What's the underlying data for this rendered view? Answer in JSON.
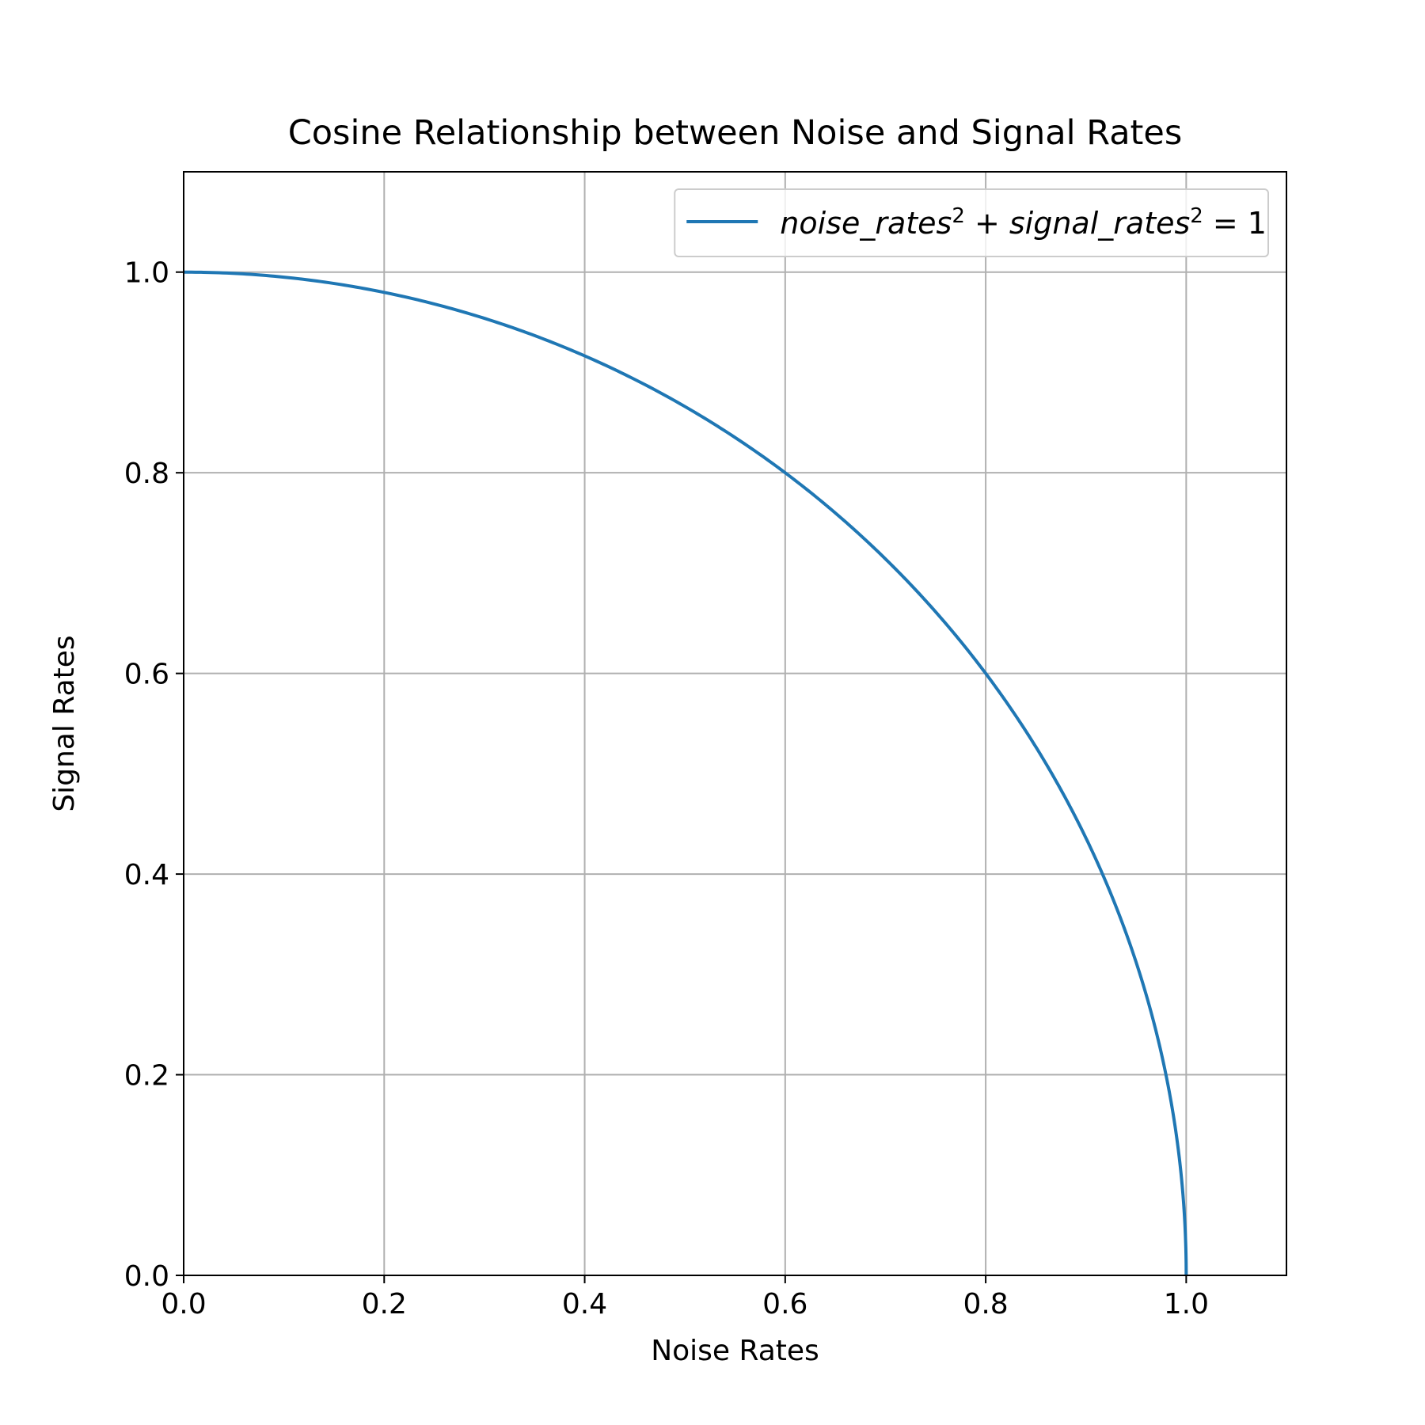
{
  "chart_data": {
    "type": "line",
    "title": "Cosine Relationship between Noise and Signal Rates",
    "xlabel": "Noise Rates",
    "ylabel": "Signal Rates",
    "xlim": [
      0.0,
      1.1
    ],
    "ylim": [
      0.0,
      1.1
    ],
    "xticks": [
      0.0,
      0.2,
      0.4,
      0.6,
      0.8,
      1.0
    ],
    "yticks": [
      0.0,
      0.2,
      0.4,
      0.6,
      0.8,
      1.0
    ],
    "xtick_labels": [
      "0.0",
      "0.2",
      "0.4",
      "0.6",
      "0.8",
      "1.0"
    ],
    "ytick_labels": [
      "0.0",
      "0.2",
      "0.4",
      "0.6",
      "0.8",
      "1.0"
    ],
    "grid": true,
    "legend_position": "top-right",
    "series": [
      {
        "name": "noise_rates^2 + signal_rates^2 = 1",
        "color": "#1f77b4",
        "x": [
          0.0,
          0.1,
          0.2,
          0.3,
          0.4,
          0.5,
          0.6,
          0.7,
          0.8,
          0.9,
          0.95,
          0.98,
          1.0
        ],
        "y": [
          1.0,
          0.995,
          0.98,
          0.954,
          0.917,
          0.866,
          0.8,
          0.714,
          0.6,
          0.436,
          0.312,
          0.199,
          0.0
        ]
      }
    ],
    "legend": {
      "parts": [
        {
          "text": "noise_rates",
          "kind": "var"
        },
        {
          "text": "2",
          "kind": "sup"
        },
        {
          "text": " + ",
          "kind": "op"
        },
        {
          "text": "signal_rates",
          "kind": "var"
        },
        {
          "text": "2",
          "kind": "sup"
        },
        {
          "text": " = 1",
          "kind": "op"
        }
      ]
    }
  }
}
